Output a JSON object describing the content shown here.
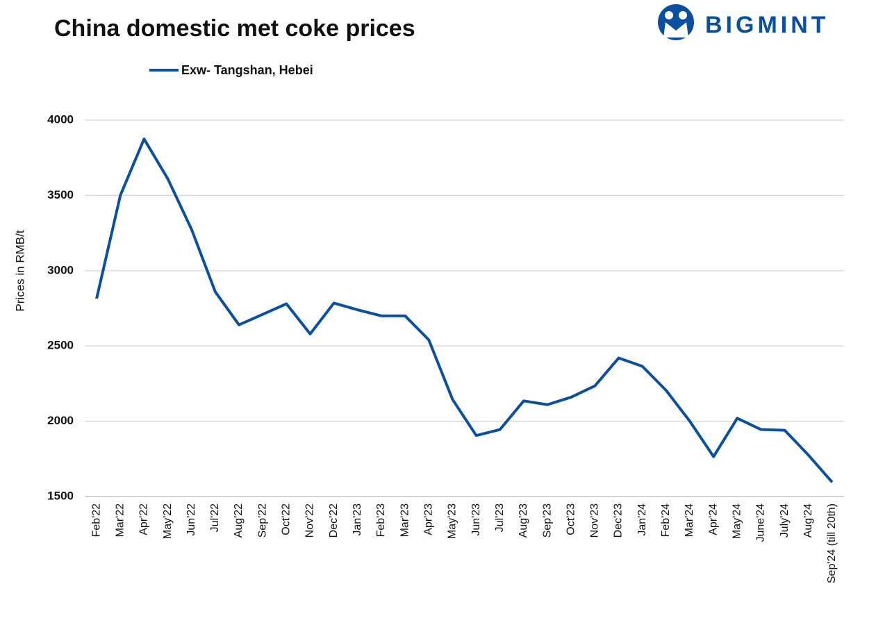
{
  "brand": "BIGMINT",
  "chart_data": {
    "type": "line",
    "title": "China domestic met coke prices",
    "y_label": "Prices in RMB/t",
    "categories": [
      "Feb'22",
      "Mar'22",
      "Apr'22",
      "May'22",
      "Jun'22",
      "Jul'22",
      "Aug'22",
      "Sep'22",
      "Oct'22",
      "Nov'22",
      "Dec'22",
      "Jan'23",
      "Feb'23",
      "Mar'23",
      "Apr'23",
      "May'23",
      "Jun'23",
      "Jul'23",
      "Aug'23",
      "Sep'23",
      "Oct'23",
      "Nov'23",
      "Dec'23",
      "Jan'24",
      "Feb'24",
      "Mar'24",
      "Apr'24",
      "May'24",
      "June'24",
      "July'24",
      "Aug'24",
      "Sep'24 (till 20th)"
    ],
    "series": [
      {
        "name": "Exw- Tangshan, Hebei",
        "color": "#0b4fa0",
        "values": [
          2815,
          3500,
          3875,
          3610,
          3275,
          2860,
          2640,
          2710,
          2780,
          2580,
          2785,
          2740,
          2700,
          2700,
          2540,
          2145,
          1905,
          1945,
          2135,
          2110,
          2160,
          2235,
          2420,
          2365,
          2205,
          2000,
          1765,
          2020,
          1945,
          1940,
          1775,
          1595
        ]
      }
    ],
    "ylim": [
      1500,
      4000
    ],
    "yticks": [
      1500,
      2000,
      2500,
      3000,
      3500,
      4000
    ],
    "grid": true,
    "legend": "top"
  }
}
